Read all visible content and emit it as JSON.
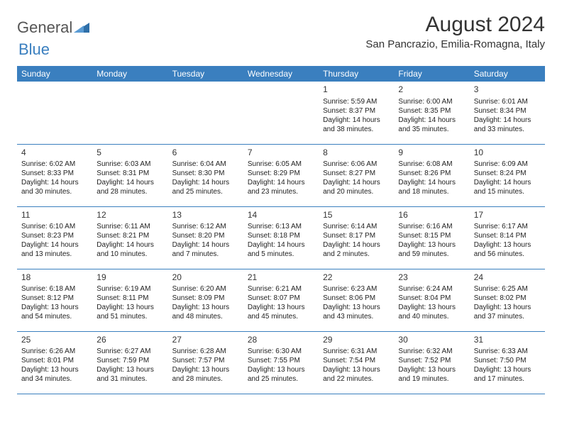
{
  "brand": {
    "part1": "General",
    "part2": "Blue"
  },
  "title": "August 2024",
  "location": "San Pancrazio, Emilia-Romagna, Italy",
  "colors": {
    "header_bg": "#3a7fbf",
    "header_fg": "#ffffff",
    "rule": "#3a7fbf",
    "text": "#222222",
    "title": "#333333"
  },
  "day_headers": [
    "Sunday",
    "Monday",
    "Tuesday",
    "Wednesday",
    "Thursday",
    "Friday",
    "Saturday"
  ],
  "weeks": [
    [
      null,
      null,
      null,
      null,
      {
        "n": "1",
        "sr": "Sunrise: 5:59 AM",
        "ss": "Sunset: 8:37 PM",
        "d1": "Daylight: 14 hours",
        "d2": "and 38 minutes."
      },
      {
        "n": "2",
        "sr": "Sunrise: 6:00 AM",
        "ss": "Sunset: 8:35 PM",
        "d1": "Daylight: 14 hours",
        "d2": "and 35 minutes."
      },
      {
        "n": "3",
        "sr": "Sunrise: 6:01 AM",
        "ss": "Sunset: 8:34 PM",
        "d1": "Daylight: 14 hours",
        "d2": "and 33 minutes."
      }
    ],
    [
      {
        "n": "4",
        "sr": "Sunrise: 6:02 AM",
        "ss": "Sunset: 8:33 PM",
        "d1": "Daylight: 14 hours",
        "d2": "and 30 minutes."
      },
      {
        "n": "5",
        "sr": "Sunrise: 6:03 AM",
        "ss": "Sunset: 8:31 PM",
        "d1": "Daylight: 14 hours",
        "d2": "and 28 minutes."
      },
      {
        "n": "6",
        "sr": "Sunrise: 6:04 AM",
        "ss": "Sunset: 8:30 PM",
        "d1": "Daylight: 14 hours",
        "d2": "and 25 minutes."
      },
      {
        "n": "7",
        "sr": "Sunrise: 6:05 AM",
        "ss": "Sunset: 8:29 PM",
        "d1": "Daylight: 14 hours",
        "d2": "and 23 minutes."
      },
      {
        "n": "8",
        "sr": "Sunrise: 6:06 AM",
        "ss": "Sunset: 8:27 PM",
        "d1": "Daylight: 14 hours",
        "d2": "and 20 minutes."
      },
      {
        "n": "9",
        "sr": "Sunrise: 6:08 AM",
        "ss": "Sunset: 8:26 PM",
        "d1": "Daylight: 14 hours",
        "d2": "and 18 minutes."
      },
      {
        "n": "10",
        "sr": "Sunrise: 6:09 AM",
        "ss": "Sunset: 8:24 PM",
        "d1": "Daylight: 14 hours",
        "d2": "and 15 minutes."
      }
    ],
    [
      {
        "n": "11",
        "sr": "Sunrise: 6:10 AM",
        "ss": "Sunset: 8:23 PM",
        "d1": "Daylight: 14 hours",
        "d2": "and 13 minutes."
      },
      {
        "n": "12",
        "sr": "Sunrise: 6:11 AM",
        "ss": "Sunset: 8:21 PM",
        "d1": "Daylight: 14 hours",
        "d2": "and 10 minutes."
      },
      {
        "n": "13",
        "sr": "Sunrise: 6:12 AM",
        "ss": "Sunset: 8:20 PM",
        "d1": "Daylight: 14 hours",
        "d2": "and 7 minutes."
      },
      {
        "n": "14",
        "sr": "Sunrise: 6:13 AM",
        "ss": "Sunset: 8:18 PM",
        "d1": "Daylight: 14 hours",
        "d2": "and 5 minutes."
      },
      {
        "n": "15",
        "sr": "Sunrise: 6:14 AM",
        "ss": "Sunset: 8:17 PM",
        "d1": "Daylight: 14 hours",
        "d2": "and 2 minutes."
      },
      {
        "n": "16",
        "sr": "Sunrise: 6:16 AM",
        "ss": "Sunset: 8:15 PM",
        "d1": "Daylight: 13 hours",
        "d2": "and 59 minutes."
      },
      {
        "n": "17",
        "sr": "Sunrise: 6:17 AM",
        "ss": "Sunset: 8:14 PM",
        "d1": "Daylight: 13 hours",
        "d2": "and 56 minutes."
      }
    ],
    [
      {
        "n": "18",
        "sr": "Sunrise: 6:18 AM",
        "ss": "Sunset: 8:12 PM",
        "d1": "Daylight: 13 hours",
        "d2": "and 54 minutes."
      },
      {
        "n": "19",
        "sr": "Sunrise: 6:19 AM",
        "ss": "Sunset: 8:11 PM",
        "d1": "Daylight: 13 hours",
        "d2": "and 51 minutes."
      },
      {
        "n": "20",
        "sr": "Sunrise: 6:20 AM",
        "ss": "Sunset: 8:09 PM",
        "d1": "Daylight: 13 hours",
        "d2": "and 48 minutes."
      },
      {
        "n": "21",
        "sr": "Sunrise: 6:21 AM",
        "ss": "Sunset: 8:07 PM",
        "d1": "Daylight: 13 hours",
        "d2": "and 45 minutes."
      },
      {
        "n": "22",
        "sr": "Sunrise: 6:23 AM",
        "ss": "Sunset: 8:06 PM",
        "d1": "Daylight: 13 hours",
        "d2": "and 43 minutes."
      },
      {
        "n": "23",
        "sr": "Sunrise: 6:24 AM",
        "ss": "Sunset: 8:04 PM",
        "d1": "Daylight: 13 hours",
        "d2": "and 40 minutes."
      },
      {
        "n": "24",
        "sr": "Sunrise: 6:25 AM",
        "ss": "Sunset: 8:02 PM",
        "d1": "Daylight: 13 hours",
        "d2": "and 37 minutes."
      }
    ],
    [
      {
        "n": "25",
        "sr": "Sunrise: 6:26 AM",
        "ss": "Sunset: 8:01 PM",
        "d1": "Daylight: 13 hours",
        "d2": "and 34 minutes."
      },
      {
        "n": "26",
        "sr": "Sunrise: 6:27 AM",
        "ss": "Sunset: 7:59 PM",
        "d1": "Daylight: 13 hours",
        "d2": "and 31 minutes."
      },
      {
        "n": "27",
        "sr": "Sunrise: 6:28 AM",
        "ss": "Sunset: 7:57 PM",
        "d1": "Daylight: 13 hours",
        "d2": "and 28 minutes."
      },
      {
        "n": "28",
        "sr": "Sunrise: 6:30 AM",
        "ss": "Sunset: 7:55 PM",
        "d1": "Daylight: 13 hours",
        "d2": "and 25 minutes."
      },
      {
        "n": "29",
        "sr": "Sunrise: 6:31 AM",
        "ss": "Sunset: 7:54 PM",
        "d1": "Daylight: 13 hours",
        "d2": "and 22 minutes."
      },
      {
        "n": "30",
        "sr": "Sunrise: 6:32 AM",
        "ss": "Sunset: 7:52 PM",
        "d1": "Daylight: 13 hours",
        "d2": "and 19 minutes."
      },
      {
        "n": "31",
        "sr": "Sunrise: 6:33 AM",
        "ss": "Sunset: 7:50 PM",
        "d1": "Daylight: 13 hours",
        "d2": "and 17 minutes."
      }
    ]
  ]
}
